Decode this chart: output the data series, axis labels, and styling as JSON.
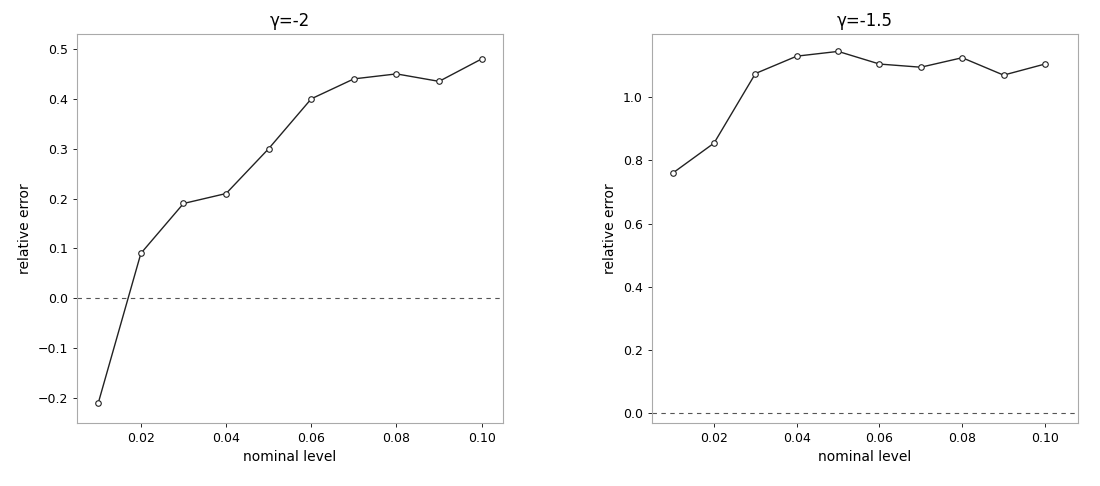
{
  "plot1": {
    "title": "γ=-2",
    "x": [
      0.01,
      0.02,
      0.03,
      0.04,
      0.05,
      0.06,
      0.07,
      0.08,
      0.09,
      0.1
    ],
    "y": [
      -0.21,
      0.09,
      0.19,
      0.21,
      0.3,
      0.4,
      0.44,
      0.45,
      0.435,
      0.48
    ],
    "ylim": [
      -0.25,
      0.53
    ],
    "yticks": [
      -0.2,
      -0.1,
      0.0,
      0.1,
      0.2,
      0.3,
      0.4,
      0.5
    ],
    "ylabel": "relative error",
    "xlabel": "nominal level",
    "xlim": [
      0.005,
      0.105
    ]
  },
  "plot2": {
    "title": "γ=-1.5",
    "x": [
      0.01,
      0.02,
      0.03,
      0.04,
      0.05,
      0.06,
      0.07,
      0.08,
      0.09,
      0.1
    ],
    "y": [
      0.76,
      0.855,
      1.075,
      1.13,
      1.145,
      1.105,
      1.095,
      1.125,
      1.07,
      1.105
    ],
    "ylim": [
      -0.03,
      1.2
    ],
    "yticks": [
      0.0,
      0.2,
      0.4,
      0.6,
      0.8,
      1.0
    ],
    "ylabel": "relative error",
    "xlabel": "nominal level",
    "xlim": [
      0.005,
      0.108
    ]
  },
  "line_color": "#222222",
  "marker": "o",
  "marker_facecolor": "white",
  "marker_edgecolor": "#222222",
  "marker_size": 4,
  "dashed_color": "#555555",
  "background_color": "#ffffff",
  "spine_color": "#aaaaaa",
  "xticks": [
    0.02,
    0.04,
    0.06,
    0.08,
    0.1
  ],
  "title_fontsize": 12,
  "label_fontsize": 10,
  "tick_fontsize": 9
}
